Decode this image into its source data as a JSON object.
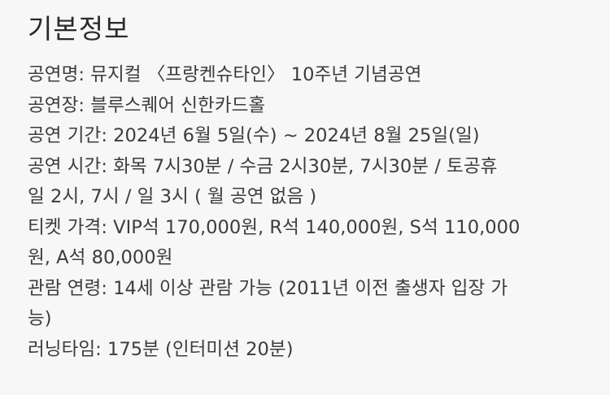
{
  "section": {
    "title": "기본정보"
  },
  "info": {
    "title_line": "공연명: 뮤지컬 〈프랑켄슈타인〉 10주년 기념공연",
    "venue_line": "공연장: 블루스퀘어 신한카드홀",
    "period_line": "공연 기간: 2024년 6월 5일(수) ~ 2024년 8월 25일(일)",
    "time_line_1": "공연 시간: 화목 7시30분 / 수금 2시30분, 7시30분 / 토공휴",
    "time_line_2": "일 2시, 7시 / 일 3시 ( 월 공연 없음 )",
    "price_line_1": "티켓 가격: VIP석 170,000원, R석 140,000원, S석 110,000",
    "price_line_2": "원, A석 80,000원",
    "age_line_1": "관람 연령: 14세 이상 관람 가능 (2011년 이전 출생자 입장 가",
    "age_line_2": "능)",
    "runtime_line": "러닝타임: 175분 (인터미션 20분)"
  }
}
